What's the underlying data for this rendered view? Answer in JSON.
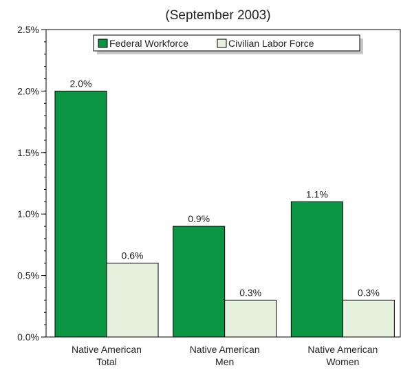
{
  "chart_data": {
    "type": "bar",
    "title": "(September 2003)",
    "xlabel": "",
    "ylabel": "",
    "ylim": [
      0,
      2.5
    ],
    "ytick_values": [
      0,
      0.5,
      1.0,
      1.5,
      2.0,
      2.5
    ],
    "ytick_labels": [
      "0.0%",
      "0.5%",
      "1.0%",
      "1.5%",
      "2.0%",
      "2.5%"
    ],
    "categories": [
      [
        "Native American",
        "Total"
      ],
      [
        "Native American",
        "Men"
      ],
      [
        "Native American",
        "Women"
      ]
    ],
    "series": [
      {
        "name": "Federal Workforce",
        "values": [
          2.0,
          0.9,
          1.1
        ],
        "labels": [
          "2.0%",
          "0.9%",
          "1.1%"
        ],
        "color": "#0a9543"
      },
      {
        "name": "Civilian Labor Force",
        "values": [
          0.6,
          0.3,
          0.3
        ],
        "labels": [
          "0.6%",
          "0.3%",
          "0.3%"
        ],
        "color": "#e6f2de"
      }
    ],
    "legend_position": "top",
    "grid": false
  }
}
